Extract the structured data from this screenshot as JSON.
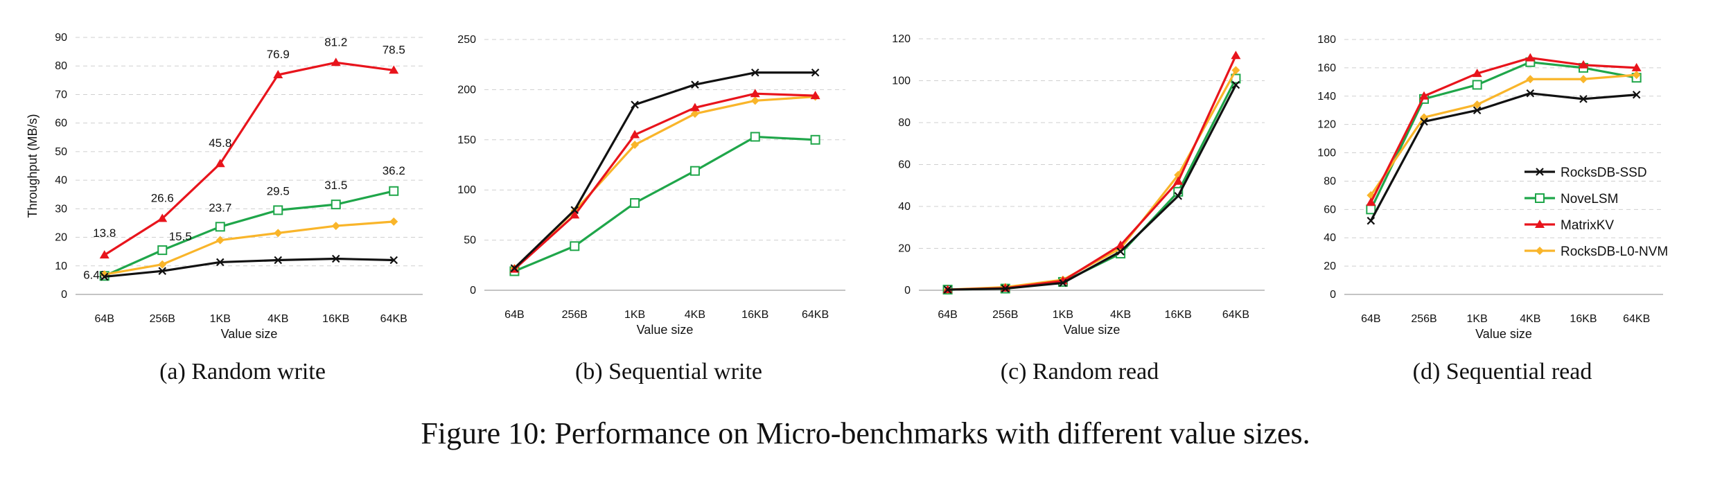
{
  "figure_caption": "Figure 10: Performance on Micro-benchmarks with different value sizes.",
  "series_styles": [
    {
      "name": "RocksDB-SSD",
      "color": "#111111",
      "marker": "x"
    },
    {
      "name": "NoveLSM",
      "color": "#1fa64a",
      "marker": "square-open"
    },
    {
      "name": "MatrixKV",
      "color": "#e8141c",
      "marker": "triangle"
    },
    {
      "name": "RocksDB-L0-NVM",
      "color": "#f9b52a",
      "marker": "diamond"
    }
  ],
  "chart_data": [
    {
      "type": "line",
      "caption": "(a)  Random write",
      "categories": [
        "64B",
        "256B",
        "1KB",
        "4KB",
        "16KB",
        "64KB"
      ],
      "xlabel": "Value size",
      "ylabel": "Throughput (MB/s)",
      "ylim": [
        0,
        90
      ],
      "yticks": [
        0,
        10,
        20,
        30,
        40,
        50,
        60,
        70,
        80,
        90
      ],
      "grid": true,
      "legend": false,
      "series": [
        {
          "name": "RocksDB-SSD",
          "values": [
            6.2,
            8.2,
            11.3,
            12.0,
            12.5,
            12.0
          ]
        },
        {
          "name": "NoveLSM",
          "values": [
            6.48,
            15.5,
            23.7,
            29.5,
            31.5,
            36.2
          ],
          "labels": [
            "6.48",
            "15.5",
            "23.7",
            "29.5",
            "31.5",
            "36.2"
          ]
        },
        {
          "name": "MatrixKV",
          "values": [
            13.8,
            26.6,
            45.8,
            76.9,
            81.2,
            78.5
          ],
          "labels": [
            "13.8",
            "26.6",
            "45.8",
            "76.9",
            "81.2",
            "78.5"
          ]
        },
        {
          "name": "RocksDB-L0-NVM",
          "values": [
            7.0,
            10.5,
            19.0,
            21.5,
            24.0,
            25.5
          ]
        }
      ]
    },
    {
      "type": "line",
      "caption": "(b)  Sequential write",
      "categories": [
        "64B",
        "256B",
        "1KB",
        "4KB",
        "16KB",
        "64KB"
      ],
      "xlabel": "Value size",
      "ylabel": "",
      "ylim": [
        0,
        250
      ],
      "yticks": [
        0,
        50,
        100,
        150,
        200,
        250
      ],
      "grid": true,
      "legend": false,
      "series": [
        {
          "name": "RocksDB-SSD",
          "values": [
            22,
            80,
            185,
            205,
            217,
            217
          ]
        },
        {
          "name": "NoveLSM",
          "values": [
            19,
            44,
            87,
            119,
            153,
            150
          ]
        },
        {
          "name": "MatrixKV",
          "values": [
            21,
            75,
            155,
            182,
            196,
            194
          ]
        },
        {
          "name": "RocksDB-L0-NVM",
          "values": [
            22,
            79,
            145,
            176,
            189,
            193
          ]
        }
      ]
    },
    {
      "type": "line",
      "caption": "(c)  Random read",
      "categories": [
        "64B",
        "256B",
        "1KB",
        "4KB",
        "16KB",
        "64KB"
      ],
      "xlabel": "Value size",
      "ylabel": "",
      "ylim": [
        0,
        120
      ],
      "yticks": [
        0,
        20,
        40,
        60,
        80,
        100,
        120
      ],
      "grid": true,
      "legend": false,
      "series": [
        {
          "name": "RocksDB-SSD",
          "values": [
            0.3,
            0.8,
            3.5,
            18.5,
            45,
            98
          ]
        },
        {
          "name": "NoveLSM",
          "values": [
            0.3,
            0.8,
            4.0,
            17.5,
            47,
            101
          ]
        },
        {
          "name": "MatrixKV",
          "values": [
            0.3,
            1.0,
            4.5,
            21.5,
            52,
            112
          ]
        },
        {
          "name": "RocksDB-L0-NVM",
          "values": [
            0.3,
            1.5,
            5.0,
            20.0,
            55,
            105
          ]
        }
      ]
    },
    {
      "type": "line",
      "caption": "(d)  Sequential read",
      "categories": [
        "64B",
        "256B",
        "1KB",
        "4KB",
        "16KB",
        "64KB"
      ],
      "xlabel": "Value size",
      "ylabel": "",
      "ylim": [
        0,
        180
      ],
      "yticks": [
        0,
        20,
        40,
        60,
        80,
        100,
        120,
        140,
        160,
        180
      ],
      "grid": true,
      "legend": true,
      "legend_position": "right",
      "series": [
        {
          "name": "RocksDB-SSD",
          "values": [
            52,
            122,
            130,
            142,
            138,
            141
          ]
        },
        {
          "name": "NoveLSM",
          "values": [
            60,
            138,
            148,
            164,
            160,
            153
          ]
        },
        {
          "name": "MatrixKV",
          "values": [
            65,
            140,
            156,
            167,
            162,
            160
          ]
        },
        {
          "name": "RocksDB-L0-NVM",
          "values": [
            70,
            125,
            134,
            152,
            152,
            155
          ]
        }
      ]
    }
  ]
}
